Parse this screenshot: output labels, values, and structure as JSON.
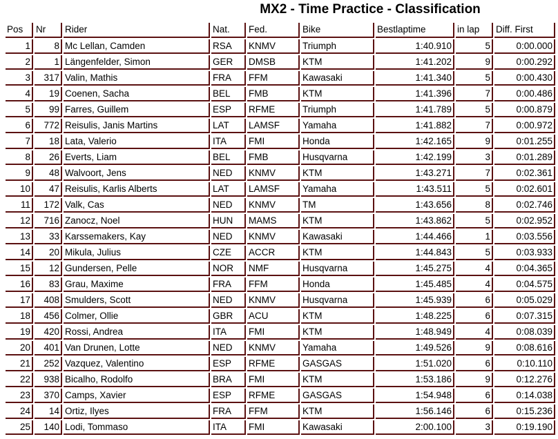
{
  "title": "MX2 - Time Practice - Classification",
  "colors": {
    "border": "#5a1010"
  },
  "columns": [
    "Pos",
    "Nr",
    "Rider",
    "Nat.",
    "Fed.",
    "Bike",
    "Bestlaptime",
    "in lap",
    "Diff. First"
  ],
  "rows": [
    [
      "1",
      "8",
      "Mc Lellan, Camden",
      "RSA",
      "KNMV",
      "Triumph",
      "1:40.910",
      "5",
      "0:00.000"
    ],
    [
      "2",
      "1",
      "Längenfelder, Simon",
      "GER",
      "DMSB",
      "KTM",
      "1:41.202",
      "9",
      "0:00.292"
    ],
    [
      "3",
      "317",
      "Valin, Mathis",
      "FRA",
      "FFM",
      "Kawasaki",
      "1:41.340",
      "5",
      "0:00.430"
    ],
    [
      "4",
      "19",
      "Coenen, Sacha",
      "BEL",
      "FMB",
      "KTM",
      "1:41.396",
      "7",
      "0:00.486"
    ],
    [
      "5",
      "99",
      "Farres, Guillem",
      "ESP",
      "RFME",
      "Triumph",
      "1:41.789",
      "5",
      "0:00.879"
    ],
    [
      "6",
      "772",
      "Reisulis, Janis Martins",
      "LAT",
      "LAMSF",
      "Yamaha",
      "1:41.882",
      "7",
      "0:00.972"
    ],
    [
      "7",
      "18",
      "Lata, Valerio",
      "ITA",
      "FMI",
      "Honda",
      "1:42.165",
      "9",
      "0:01.255"
    ],
    [
      "8",
      "26",
      "Everts, Liam",
      "BEL",
      "FMB",
      "Husqvarna",
      "1:42.199",
      "3",
      "0:01.289"
    ],
    [
      "9",
      "48",
      "Walvoort, Jens",
      "NED",
      "KNMV",
      "KTM",
      "1:43.271",
      "7",
      "0:02.361"
    ],
    [
      "10",
      "47",
      "Reisulis, Karlis Alberts",
      "LAT",
      "LAMSF",
      "Yamaha",
      "1:43.511",
      "5",
      "0:02.601"
    ],
    [
      "11",
      "172",
      "Valk, Cas",
      "NED",
      "KNMV",
      "TM",
      "1:43.656",
      "8",
      "0:02.746"
    ],
    [
      "12",
      "716",
      "Zanocz, Noel",
      "HUN",
      "MAMS",
      "KTM",
      "1:43.862",
      "5",
      "0:02.952"
    ],
    [
      "13",
      "33",
      "Karssemakers, Kay",
      "NED",
      "KNMV",
      "Kawasaki",
      "1:44.466",
      "1",
      "0:03.556"
    ],
    [
      "14",
      "20",
      "Mikula, Julius",
      "CZE",
      "ACCR",
      "KTM",
      "1:44.843",
      "5",
      "0:03.933"
    ],
    [
      "15",
      "12",
      "Gundersen, Pelle",
      "NOR",
      "NMF",
      "Husqvarna",
      "1:45.275",
      "4",
      "0:04.365"
    ],
    [
      "16",
      "83",
      "Grau, Maxime",
      "FRA",
      "FFM",
      "Honda",
      "1:45.485",
      "4",
      "0:04.575"
    ],
    [
      "17",
      "408",
      "Smulders, Scott",
      "NED",
      "KNMV",
      "Husqvarna",
      "1:45.939",
      "6",
      "0:05.029"
    ],
    [
      "18",
      "456",
      "Colmer, Ollie",
      "GBR",
      "ACU",
      "KTM",
      "1:48.225",
      "6",
      "0:07.315"
    ],
    [
      "19",
      "420",
      "Rossi, Andrea",
      "ITA",
      "FMI",
      "KTM",
      "1:48.949",
      "4",
      "0:08.039"
    ],
    [
      "20",
      "401",
      "Van Drunen, Lotte",
      "NED",
      "KNMV",
      "Yamaha",
      "1:49.526",
      "9",
      "0:08.616"
    ],
    [
      "21",
      "252",
      "Vazquez, Valentino",
      "ESP",
      "RFME",
      "GASGAS",
      "1:51.020",
      "6",
      "0:10.110"
    ],
    [
      "22",
      "938",
      "Bicalho, Rodolfo",
      "BRA",
      "FMI",
      "KTM",
      "1:53.186",
      "9",
      "0:12.276"
    ],
    [
      "23",
      "370",
      "Camps, Xavier",
      "ESP",
      "RFME",
      "GASGAS",
      "1:54.948",
      "6",
      "0:14.038"
    ],
    [
      "24",
      "14",
      "Ortiz, Ilyes",
      "FRA",
      "FFM",
      "KTM",
      "1:56.146",
      "6",
      "0:15.236"
    ],
    [
      "25",
      "140",
      "Lodi, Tommaso",
      "ITA",
      "FMI",
      "Kawasaki",
      "2:00.100",
      "3",
      "0:19.190"
    ]
  ]
}
